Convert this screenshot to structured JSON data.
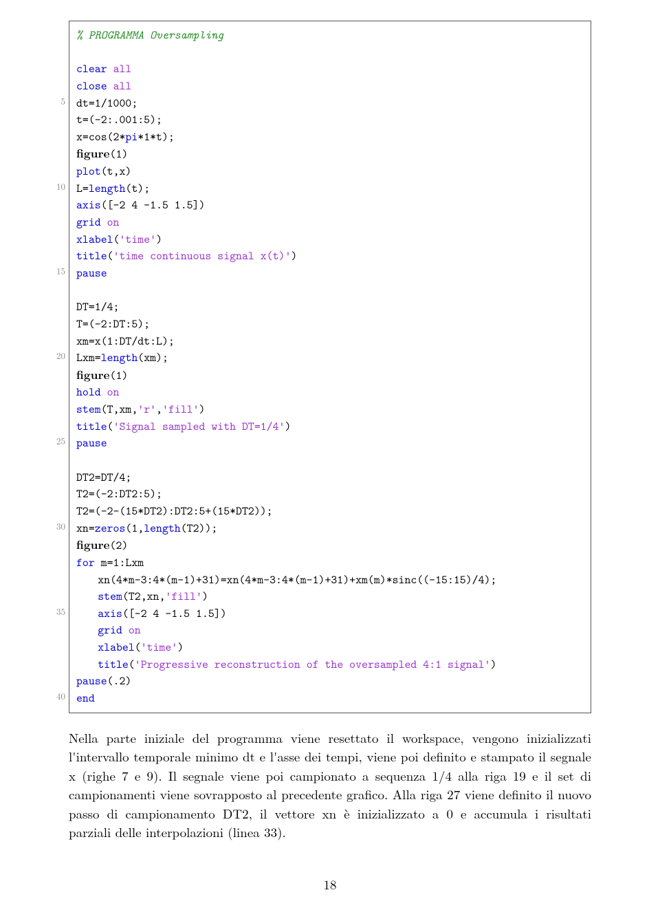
{
  "colors": {
    "comment": "#228B22",
    "keyword": "#0000c8",
    "string": "#9932CC",
    "plain": "#000000",
    "lineno": "#888888",
    "border": "#555555",
    "background": "#ffffff"
  },
  "fonts": {
    "body_family": "Latin Modern Roman, Computer Modern, Georgia, serif",
    "code_family": "Latin Modern Mono, Courier New, monospace",
    "body_size_pt": 14,
    "code_size_pt": 13,
    "lineno_size_pt": 10
  },
  "lineno_step": 5,
  "code": [
    {
      "n": null,
      "segs": [
        {
          "t": "% PROGRAMMA Oversampling",
          "c": "cm"
        }
      ]
    },
    {
      "n": null,
      "segs": []
    },
    {
      "n": null,
      "segs": [
        {
          "t": "clear ",
          "c": "kw"
        },
        {
          "t": "all",
          "c": "str"
        }
      ]
    },
    {
      "n": null,
      "segs": [
        {
          "t": "close ",
          "c": "kw"
        },
        {
          "t": "all",
          "c": "str"
        }
      ]
    },
    {
      "n": 5,
      "segs": [
        {
          "t": "dt=1/1000;",
          "c": "plain"
        }
      ]
    },
    {
      "n": null,
      "segs": [
        {
          "t": "t=(-2:.001:5);",
          "c": "plain"
        }
      ]
    },
    {
      "n": null,
      "segs": [
        {
          "t": "x=cos(2*",
          "c": "plain"
        },
        {
          "t": "pi",
          "c": "kw"
        },
        {
          "t": "*1*t);",
          "c": "plain"
        }
      ]
    },
    {
      "n": null,
      "segs": [
        {
          "t": "figure",
          "c": "fb"
        },
        {
          "t": "(1)",
          "c": "plain"
        }
      ]
    },
    {
      "n": null,
      "segs": [
        {
          "t": "plot",
          "c": "kw"
        },
        {
          "t": "(t,x)",
          "c": "plain"
        }
      ]
    },
    {
      "n": 10,
      "segs": [
        {
          "t": "L=",
          "c": "plain"
        },
        {
          "t": "length",
          "c": "kw"
        },
        {
          "t": "(t);",
          "c": "plain"
        }
      ]
    },
    {
      "n": null,
      "segs": [
        {
          "t": "axis",
          "c": "kw"
        },
        {
          "t": "([-2 4 -1.5 1.5])",
          "c": "plain"
        }
      ]
    },
    {
      "n": null,
      "segs": [
        {
          "t": "grid ",
          "c": "kw"
        },
        {
          "t": "on",
          "c": "str"
        }
      ]
    },
    {
      "n": null,
      "segs": [
        {
          "t": "xlabel",
          "c": "kw"
        },
        {
          "t": "(",
          "c": "plain"
        },
        {
          "t": "'time'",
          "c": "str"
        },
        {
          "t": ")",
          "c": "plain"
        }
      ]
    },
    {
      "n": null,
      "segs": [
        {
          "t": "title",
          "c": "kw"
        },
        {
          "t": "(",
          "c": "plain"
        },
        {
          "t": "'time continuous signal x(t)'",
          "c": "str"
        },
        {
          "t": ")",
          "c": "plain"
        }
      ]
    },
    {
      "n": 15,
      "segs": [
        {
          "t": "pause",
          "c": "kw"
        }
      ]
    },
    {
      "n": null,
      "segs": []
    },
    {
      "n": null,
      "segs": [
        {
          "t": "DT=1/4;",
          "c": "plain"
        }
      ]
    },
    {
      "n": null,
      "segs": [
        {
          "t": "T=(-2:DT:5);",
          "c": "plain"
        }
      ]
    },
    {
      "n": null,
      "segs": [
        {
          "t": "xm=x(1:DT/dt:L);",
          "c": "plain"
        }
      ]
    },
    {
      "n": 20,
      "segs": [
        {
          "t": "Lxm=",
          "c": "plain"
        },
        {
          "t": "length",
          "c": "kw"
        },
        {
          "t": "(xm);",
          "c": "plain"
        }
      ]
    },
    {
      "n": null,
      "segs": [
        {
          "t": "figure",
          "c": "fb"
        },
        {
          "t": "(1)",
          "c": "plain"
        }
      ]
    },
    {
      "n": null,
      "segs": [
        {
          "t": "hold ",
          "c": "kw"
        },
        {
          "t": "on",
          "c": "str"
        }
      ]
    },
    {
      "n": null,
      "segs": [
        {
          "t": "stem",
          "c": "kw"
        },
        {
          "t": "(T,xm,",
          "c": "plain"
        },
        {
          "t": "'r'",
          "c": "str"
        },
        {
          "t": ",",
          "c": "plain"
        },
        {
          "t": "'fill'",
          "c": "str"
        },
        {
          "t": ")",
          "c": "plain"
        }
      ]
    },
    {
      "n": null,
      "segs": [
        {
          "t": "title",
          "c": "kw"
        },
        {
          "t": "(",
          "c": "plain"
        },
        {
          "t": "'Signal sampled with DT=1/4'",
          "c": "str"
        },
        {
          "t": ")",
          "c": "plain"
        }
      ]
    },
    {
      "n": 25,
      "segs": [
        {
          "t": "pause",
          "c": "kw"
        }
      ]
    },
    {
      "n": null,
      "segs": []
    },
    {
      "n": null,
      "segs": [
        {
          "t": "DT2=DT/4;",
          "c": "plain"
        }
      ]
    },
    {
      "n": null,
      "segs": [
        {
          "t": "T2=(-2:DT2:5);",
          "c": "plain"
        }
      ]
    },
    {
      "n": null,
      "segs": [
        {
          "t": "T2=(-2-(15*DT2):DT2:5+(15*DT2));",
          "c": "plain"
        }
      ]
    },
    {
      "n": 30,
      "segs": [
        {
          "t": "xn=",
          "c": "plain"
        },
        {
          "t": "zeros",
          "c": "kw"
        },
        {
          "t": "(1,",
          "c": "plain"
        },
        {
          "t": "length",
          "c": "kw"
        },
        {
          "t": "(T2));",
          "c": "plain"
        }
      ]
    },
    {
      "n": null,
      "segs": [
        {
          "t": "figure",
          "c": "fb"
        },
        {
          "t": "(2)",
          "c": "plain"
        }
      ]
    },
    {
      "n": null,
      "segs": [
        {
          "t": "for ",
          "c": "kw"
        },
        {
          "t": "m=1:Lxm",
          "c": "plain"
        }
      ]
    },
    {
      "n": null,
      "indent": true,
      "segs": [
        {
          "t": "xn(4*m-3:4*(m-1)+31)=xn(4*m-3:4*(m-1)+31)+xm(m)*sinc((-15:15)/4);",
          "c": "plain"
        }
      ]
    },
    {
      "n": null,
      "indent": true,
      "segs": [
        {
          "t": "stem",
          "c": "kw"
        },
        {
          "t": "(T2,xn,",
          "c": "plain"
        },
        {
          "t": "'fill'",
          "c": "str"
        },
        {
          "t": ")",
          "c": "plain"
        }
      ]
    },
    {
      "n": 35,
      "indent": true,
      "segs": [
        {
          "t": "axis",
          "c": "kw"
        },
        {
          "t": "([-2 4 -1.5 1.5])",
          "c": "plain"
        }
      ]
    },
    {
      "n": null,
      "indent": true,
      "segs": [
        {
          "t": "grid ",
          "c": "kw"
        },
        {
          "t": "on",
          "c": "str"
        }
      ]
    },
    {
      "n": null,
      "indent": true,
      "segs": [
        {
          "t": "xlabel",
          "c": "kw"
        },
        {
          "t": "(",
          "c": "plain"
        },
        {
          "t": "'time'",
          "c": "str"
        },
        {
          "t": ")",
          "c": "plain"
        }
      ]
    },
    {
      "n": null,
      "indent": true,
      "segs": [
        {
          "t": "title",
          "c": "kw"
        },
        {
          "t": "(",
          "c": "plain"
        },
        {
          "t": "'Progressive reconstruction of the oversampled 4:1 signal'",
          "c": "str"
        },
        {
          "t": ")",
          "c": "plain"
        }
      ]
    },
    {
      "n": null,
      "segs": [
        {
          "t": "pause",
          "c": "kw"
        },
        {
          "t": "(.2)",
          "c": "plain"
        }
      ]
    },
    {
      "n": 40,
      "segs": [
        {
          "t": "end",
          "c": "kw"
        }
      ]
    }
  ],
  "paragraph": "Nella parte iniziale del programma viene resettato il workspace, vengono inizializzati l'intervallo temporale minimo dt e l'asse dei tempi, viene poi definito e stampato il segnale x (righe 7 e 9). Il segnale viene poi campionato a sequenza 1/4 alla riga 19 e il set di campionamenti viene sovrapposto al precedente grafico. Alla riga 27 viene definito il nuovo passo di campionamento DT2, il vettore xn è inizializzato a 0 e accumula i risultati parziali delle interpolazioni (linea 33).",
  "page_number": "18"
}
